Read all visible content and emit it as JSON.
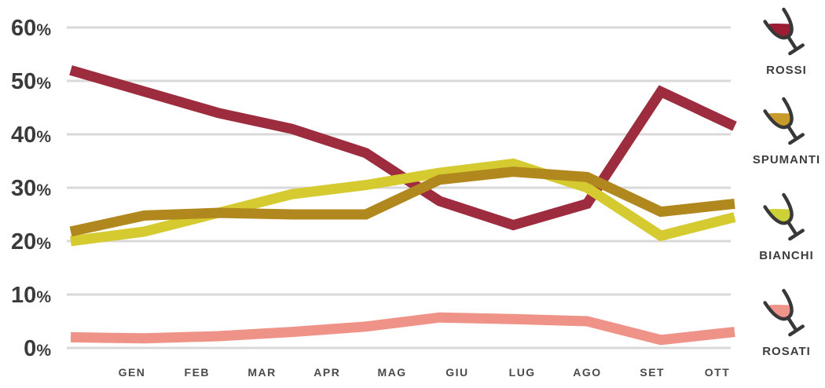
{
  "chart_data": {
    "type": "line",
    "title": "",
    "categories": [
      "GEN",
      "FEB",
      "MAR",
      "APR",
      "MAG",
      "GIU",
      "LUG",
      "AGO",
      "SET",
      "OTT"
    ],
    "y_axis": {
      "tick_labels": [
        "0%",
        "10%",
        "20%",
        "30%",
        "40%",
        "50%",
        "60%"
      ],
      "min": 0,
      "max": 60,
      "unit": "%"
    },
    "grid": true,
    "legend_position": "right",
    "series": [
      {
        "name": "ROSSI",
        "line_color": "#9C2C3E",
        "glass_fill": "#9A1D33",
        "values": [
          52,
          48,
          44,
          41,
          36.5,
          27.5,
          23,
          27,
          48,
          41.5
        ]
      },
      {
        "name": "SPUMANTI",
        "line_color": "#B1881E",
        "glass_fill": "#C9992B",
        "values": [
          21.8,
          24.8,
          25.3,
          25,
          25,
          31.5,
          33,
          32,
          25.5,
          27
        ]
      },
      {
        "name": "BIANCHI",
        "line_color": "#D5CB30",
        "glass_fill": "#CDD135",
        "values": [
          20,
          21.8,
          25.3,
          28.8,
          30.5,
          32.8,
          34.5,
          30,
          21,
          24.5
        ]
      },
      {
        "name": "ROSATI",
        "line_color": "#EF9287",
        "glass_fill": "#F0938B",
        "values": [
          2,
          1.8,
          2.2,
          3,
          4,
          5.7,
          5.4,
          5,
          1.5,
          3
        ]
      }
    ]
  },
  "colors": {
    "background": "#FFFFFF",
    "gridline": "#D9D9D9",
    "y_axis_text": "#3B3B3B",
    "x_axis_text": "#4A4A4A",
    "legend_text": "#3D3D3D",
    "glass_outline": "#383838"
  }
}
